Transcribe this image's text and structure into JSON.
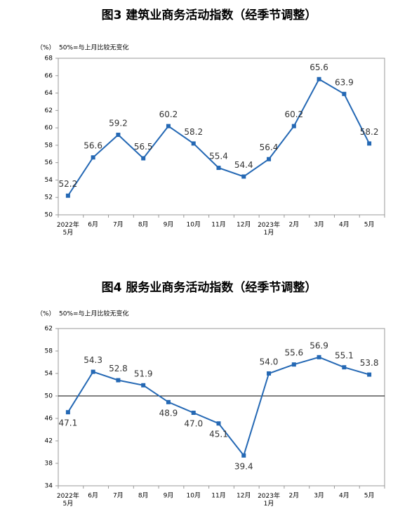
{
  "chart_data": [
    {
      "type": "line",
      "title": "图3  建筑业商务活动指数（经季节调整）",
      "unit": "（%）",
      "note": "50%=与上月比较无变化",
      "categories": [
        "2022年\n5月",
        "6月",
        "7月",
        "8月",
        "9月",
        "10月",
        "11月",
        "12月",
        "2023年\n1月",
        "2月",
        "3月",
        "4月",
        "5月"
      ],
      "series": [
        {
          "color": "#2468b4",
          "values": [
            52.2,
            56.6,
            59.2,
            56.5,
            60.2,
            58.2,
            55.4,
            54.4,
            56.4,
            60.2,
            65.6,
            63.9,
            58.2
          ]
        }
      ],
      "ylim": [
        50,
        68
      ],
      "yticks": [
        50,
        52,
        54,
        56,
        58,
        60,
        62,
        64,
        66,
        68
      ]
    },
    {
      "type": "line",
      "title": "图4  服务业商务活动指数（经季节调整）",
      "unit": "（%）",
      "note": "50%=与上月比较无变化",
      "categories": [
        "2022年\n5月",
        "6月",
        "7月",
        "8月",
        "9月",
        "10月",
        "11月",
        "12月",
        "2023年\n1月",
        "2月",
        "3月",
        "4月",
        "5月"
      ],
      "series": [
        {
          "color": "#2468b4",
          "values": [
            47.1,
            54.3,
            52.8,
            51.9,
            48.9,
            47.0,
            45.1,
            39.4,
            54.0,
            55.6,
            56.9,
            55.1,
            53.8
          ],
          "value_labels": [
            "47.1",
            "54.3",
            "52.8",
            "51.9",
            "48.9",
            "47.0",
            "45.1",
            "39.4",
            "54.0",
            "55.6",
            "56.9",
            "55.1",
            "53.8"
          ]
        }
      ],
      "ylim": [
        34,
        62
      ],
      "yticks": [
        34,
        38,
        42,
        46,
        50,
        54,
        58,
        62
      ],
      "reference_line": 50
    }
  ]
}
